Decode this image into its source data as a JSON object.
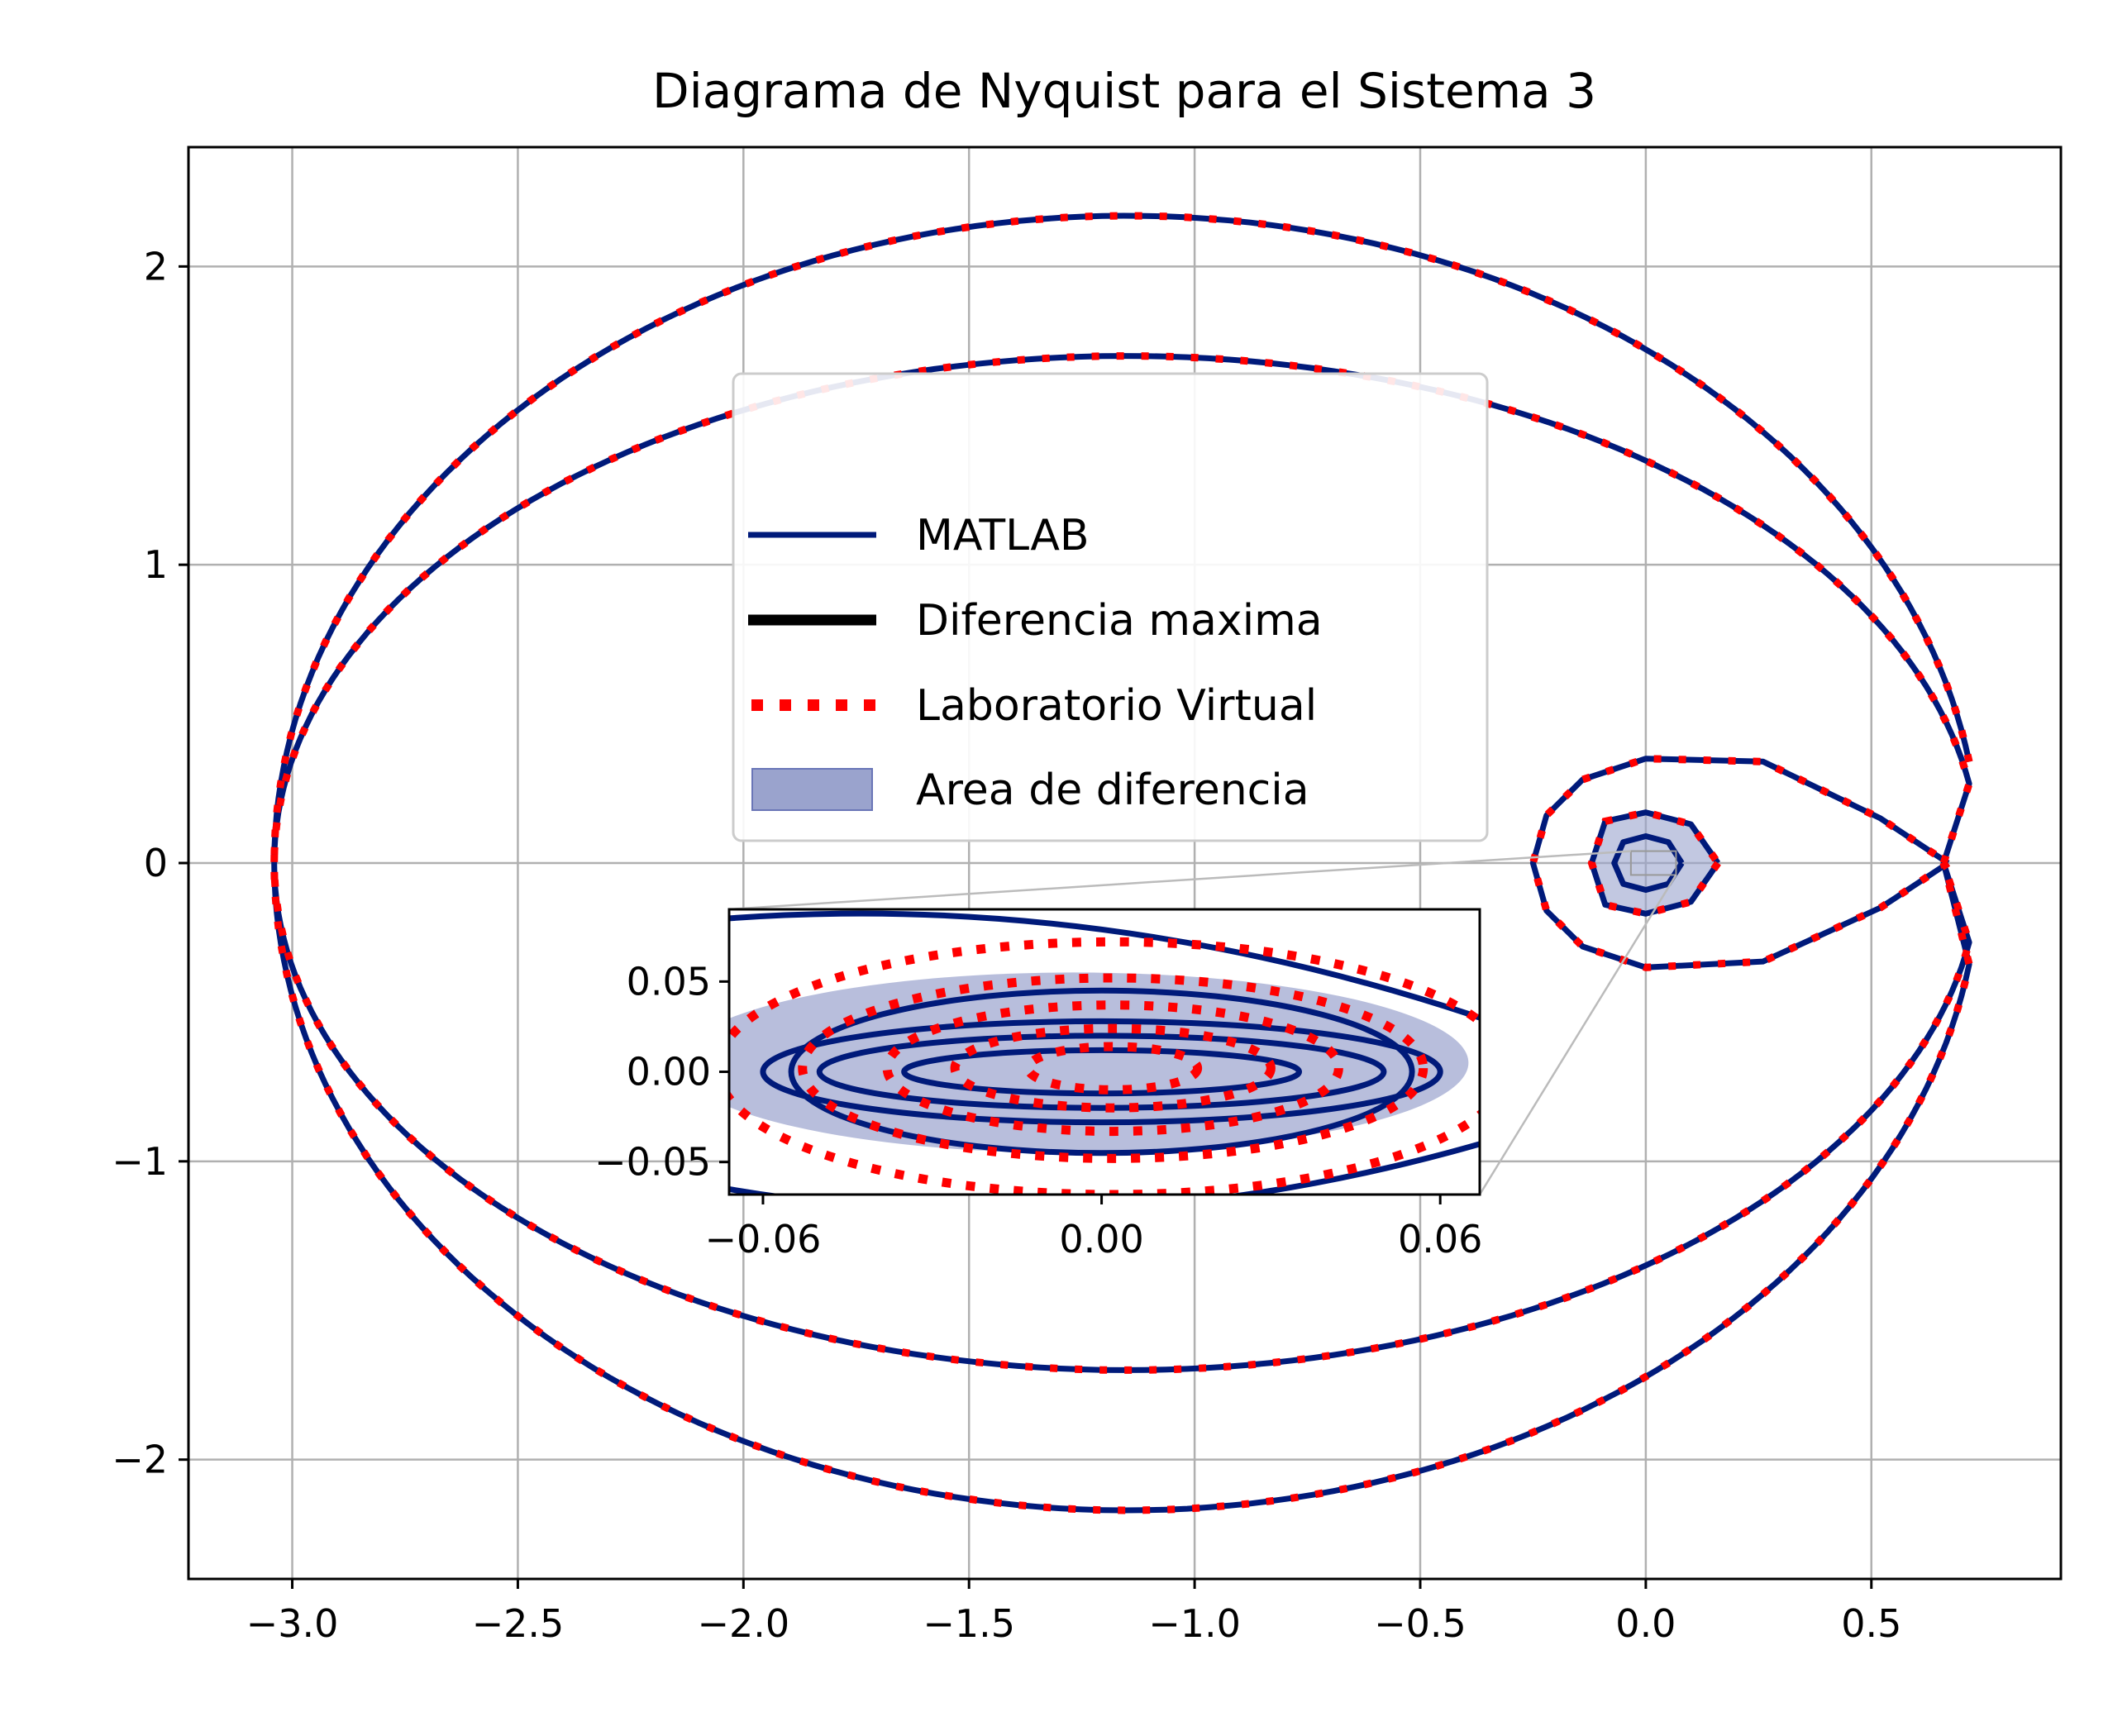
{
  "chart_data": {
    "type": "line",
    "title": "Diagrama de Nyquist para el Sistema 3",
    "xlabel": "",
    "ylabel": "",
    "xlim": [
      -3.23,
      0.92
    ],
    "ylim": [
      -2.4,
      2.4
    ],
    "x_ticks": [
      -3.0,
      -2.5,
      -2.0,
      -1.5,
      -1.0,
      -0.5,
      0.0,
      0.5
    ],
    "x_tick_labels": [
      "−3.0",
      "−2.5",
      "−2.0",
      "−1.5",
      "−1.0",
      "−0.5",
      "0.0",
      "0.5"
    ],
    "y_ticks": [
      2,
      1,
      0,
      -1,
      -2
    ],
    "y_tick_labels": [
      "2",
      "1",
      "0",
      "−1",
      "−2"
    ],
    "grid": true,
    "legend_position": "center",
    "legend": [
      {
        "label": "MATLAB",
        "style": "solid",
        "color": "#001a7a"
      },
      {
        "label": "Diferencia maxima",
        "style": "thick-solid",
        "color": "#000000"
      },
      {
        "label": "Laboratorio Virtual",
        "style": "dotted",
        "color": "#ff0000"
      },
      {
        "label": "Area de diferencia",
        "style": "patch",
        "color": "#9aa3cd"
      }
    ],
    "series": [
      {
        "name": "MATLAB",
        "color": "#001a7a",
        "loops": [
          {
            "cx": -1.15,
            "cy": 0,
            "x_left": -3.05,
            "x_right": 0.74,
            "y_half": 2.17,
            "y_inner_half": 1.7
          },
          {
            "cx": 0.0,
            "cy": 0,
            "x_left": -0.25,
            "x_right": 0.67,
            "y_half": 0.35
          },
          {
            "cx": 0.0,
            "cy": 0,
            "x_left": -0.12,
            "x_right": 0.16,
            "y_half": 0.17
          }
        ]
      },
      {
        "name": "Laboratorio Virtual",
        "color": "#ff0000",
        "loops": [
          {
            "cx": -1.15,
            "cy": 0,
            "x_left": -3.05,
            "x_right": 0.74,
            "y_half": 2.17,
            "y_inner_half": 1.7
          },
          {
            "cx": 0.0,
            "cy": 0,
            "x_left": -0.25,
            "x_right": 0.67,
            "y_half": 0.35
          }
        ]
      }
    ],
    "inset": {
      "xlim": [
        -0.066,
        0.067
      ],
      "ylim": [
        -0.068,
        0.09
      ],
      "x_ticks": [
        -0.06,
        0.0,
        0.06
      ],
      "x_tick_labels": [
        "−0.06",
        "0.00",
        "0.06"
      ],
      "y_ticks": [
        0.05,
        0.0,
        -0.05
      ],
      "y_tick_labels": [
        "0.05",
        "0.00",
        "−0.05"
      ]
    }
  }
}
